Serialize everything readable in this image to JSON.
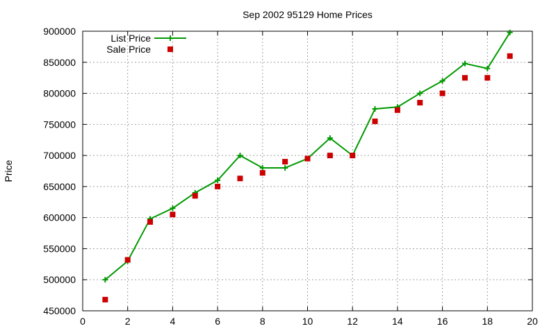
{
  "chart_data": {
    "type": "line",
    "title": "Sep 2002 95129 Home Prices",
    "xlabel": "",
    "ylabel": "Price",
    "xlim": [
      0,
      20
    ],
    "ylim": [
      450000,
      900000
    ],
    "xticks": [
      0,
      2,
      4,
      6,
      8,
      10,
      12,
      14,
      16,
      18,
      20
    ],
    "yticks": [
      450000,
      500000,
      550000,
      600000,
      650000,
      700000,
      750000,
      800000,
      850000,
      900000
    ],
    "grid": true,
    "legend_position": "top-left",
    "x": [
      1,
      2,
      3,
      4,
      5,
      6,
      7,
      8,
      9,
      10,
      11,
      12,
      13,
      14,
      15,
      16,
      17,
      18,
      19
    ],
    "series": [
      {
        "name": "List Price",
        "style": "line-with-plus-markers",
        "color": "#009900",
        "values": [
          500000,
          530000,
          598000,
          615000,
          640000,
          660000,
          700000,
          680000,
          680000,
          695000,
          728000,
          700000,
          775000,
          778000,
          800000,
          820000,
          848000,
          840000,
          898000
        ]
      },
      {
        "name": "Sale Price",
        "style": "square-markers",
        "color": "#cc0000",
        "values": [
          468000,
          532000,
          593000,
          605000,
          635000,
          650000,
          663000,
          672000,
          690000,
          695000,
          700000,
          700000,
          755000,
          773000,
          785000,
          800000,
          825000,
          825000,
          860000
        ]
      }
    ]
  }
}
